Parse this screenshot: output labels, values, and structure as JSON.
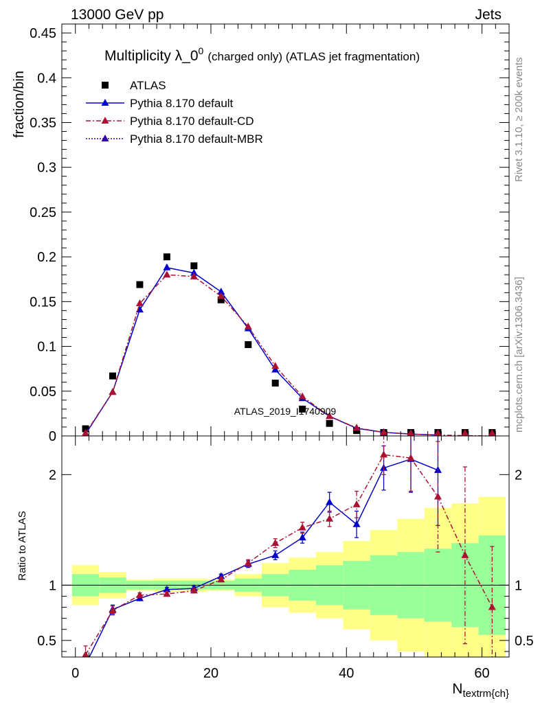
{
  "header": {
    "left": "13000 GeV pp",
    "right": "Jets"
  },
  "side_labels": {
    "top": "Rivet 3.1.10, ≥ 200k events",
    "bottom": "mcplots.cern.ch [arXiv:1306.3436]"
  },
  "watermark": "ATLAS_2019_I1740909",
  "colors": {
    "atlas": "#000000",
    "default": "#0000cc",
    "cd": "#aa1133",
    "mbr": "#3300aa",
    "band_inner": "#99ff99",
    "band_outer": "#ffff88"
  },
  "chart_data": [
    {
      "type": "scatter",
      "panel": "main",
      "title": "Multiplicity λ_0",
      "title_sup": "0",
      "title_suffix": "(charged only) (ATLAS jet fragmentation)",
      "ylabel": "fraction/bin",
      "xlim": [
        -2,
        64
      ],
      "ylim": [
        0,
        0.46
      ],
      "yticks": [
        0,
        0.05,
        0.1,
        0.15,
        0.2,
        0.25,
        0.3,
        0.35,
        0.4,
        0.45
      ],
      "ytick_labels": [
        "0",
        "0.05",
        "0.1",
        "0.15",
        "0.2",
        "0.25",
        "0.3",
        "0.35",
        "0.4",
        "0.45"
      ],
      "legend_position": "top-left",
      "series": [
        {
          "name": "ATLAS",
          "style": "marker",
          "x": [
            1.5,
            5.5,
            9.5,
            13.5,
            17.5,
            21.5,
            25.5,
            29.5,
            33.5,
            37.5,
            41.5,
            45.5,
            49.5,
            53.5,
            57.5,
            61.5
          ],
          "y": [
            0.008,
            0.067,
            0.169,
            0.2,
            0.19,
            0.152,
            0.102,
            0.059,
            0.03,
            0.014,
            0.006,
            0.002,
            0.001,
            0.0005,
            0.0002,
            0.0001
          ]
        },
        {
          "name": "Pythia 8.170 default",
          "style": "solid",
          "x": [
            1.5,
            5.5,
            9.5,
            13.5,
            17.5,
            21.5,
            25.5,
            29.5,
            33.5,
            37.5,
            41.5,
            45.5,
            49.5,
            53.5
          ],
          "y": [
            0.002,
            0.049,
            0.141,
            0.188,
            0.182,
            0.161,
            0.12,
            0.074,
            0.042,
            0.022,
            0.0085,
            0.004,
            0.0021,
            0.001
          ]
        },
        {
          "name": "Pythia 8.170 default-CD",
          "style": "dashdot",
          "x": [
            1.5,
            5.5,
            9.5,
            13.5,
            17.5,
            21.5,
            25.5,
            29.5,
            33.5,
            37.5,
            41.5,
            45.5,
            49.5,
            53.5,
            57.5,
            61.5
          ],
          "y": [
            0.003,
            0.049,
            0.148,
            0.18,
            0.178,
            0.156,
            0.122,
            0.078,
            0.044,
            0.022,
            0.009,
            0.004,
            0.002,
            0.001,
            0.0003,
            0.0001
          ]
        },
        {
          "name": "Pythia 8.170 default-MBR",
          "style": "dotted",
          "x": [],
          "y": []
        }
      ]
    },
    {
      "type": "line",
      "panel": "ratio",
      "ylabel": "Ratio to ATLAS",
      "xlabel": "N",
      "xlabel_sub": "textrm{ch}",
      "xlim": [
        -2,
        64
      ],
      "ylim": [
        0.35,
        2.35
      ],
      "yticks": [
        0.5,
        1,
        2
      ],
      "ytick_labels": [
        "0.5",
        "1",
        "2"
      ],
      "xticks": [
        0,
        20,
        40,
        60
      ],
      "xtick_labels": [
        "0",
        "20",
        "40",
        "60"
      ],
      "bands": {
        "edges": [
          -0.5,
          3.5,
          7.5,
          11.5,
          15.5,
          19.5,
          23.5,
          27.5,
          31.5,
          35.5,
          39.5,
          43.5,
          47.5,
          51.5,
          55.5,
          59.5,
          63.5
        ],
        "inner": [
          0.1,
          0.07,
          0.04,
          0.04,
          0.04,
          0.04,
          0.06,
          0.1,
          0.14,
          0.18,
          0.22,
          0.27,
          0.3,
          0.33,
          0.38,
          0.45
        ],
        "outer": [
          0.18,
          0.12,
          0.05,
          0.06,
          0.06,
          0.05,
          0.1,
          0.2,
          0.25,
          0.3,
          0.4,
          0.5,
          0.6,
          0.7,
          0.74,
          0.8
        ]
      },
      "series": [
        {
          "name": "Pythia 8.170 default",
          "style": "solid",
          "x": [
            1.5,
            5.5,
            9.5,
            13.5,
            17.5,
            21.5,
            25.5,
            29.5,
            33.5,
            37.5,
            41.5,
            45.5,
            49.5,
            53.5
          ],
          "y": [
            0.28,
            0.78,
            0.88,
            0.96,
            0.97,
            1.08,
            1.19,
            1.27,
            1.43,
            1.75,
            1.55,
            2.06,
            2.14,
            2.04
          ],
          "err": [
            0.05,
            0.04,
            0.02,
            0.02,
            0.02,
            0.02,
            0.03,
            0.04,
            0.05,
            0.09,
            0.12,
            0.2,
            0.3,
            0.5
          ]
        },
        {
          "name": "Pythia 8.170 default-CD",
          "style": "dashdot",
          "x": [
            1.5,
            5.5,
            9.5,
            13.5,
            17.5,
            21.5,
            25.5,
            29.5,
            33.5,
            37.5,
            41.5,
            45.5,
            49.5,
            53.5,
            57.5,
            61.5
          ],
          "y": [
            0.37,
            0.77,
            0.91,
            0.92,
            0.95,
            1.05,
            1.2,
            1.38,
            1.52,
            1.6,
            1.73,
            2.18,
            2.15,
            1.8,
            1.27,
            0.8
          ],
          "err": [
            0.08,
            0.04,
            0.02,
            0.02,
            0.02,
            0.02,
            0.03,
            0.04,
            0.05,
            0.07,
            0.12,
            0.18,
            0.3,
            0.5,
            0.8,
            0.55
          ]
        }
      ]
    }
  ]
}
